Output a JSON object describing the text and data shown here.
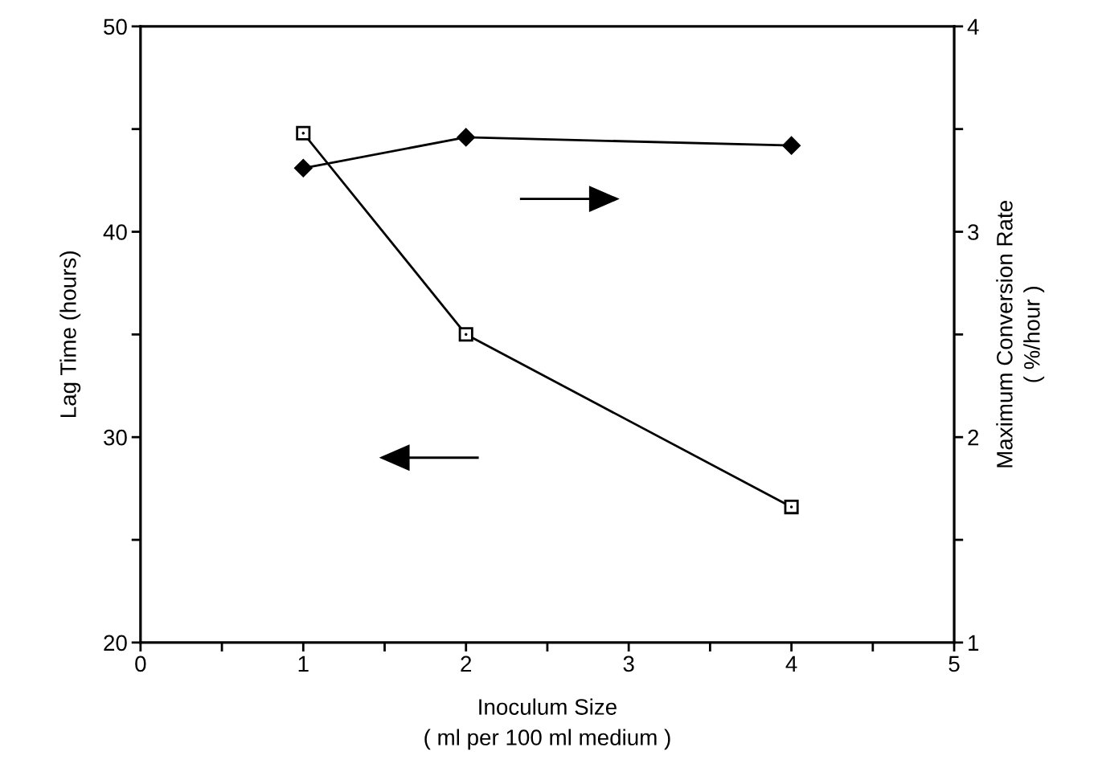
{
  "chart_data": {
    "type": "line",
    "x": [
      1,
      2,
      4
    ],
    "xlabel": "Inoculum Size\n( ml per 100 ml medium )",
    "ylabel": "Lag Time (hours)",
    "y2label": "Maximum Conversion Rate\n( %/hour )",
    "series": [
      {
        "color": "#000000",
        "marker": "square",
        "values": [
          44.8,
          35.0,
          26.6
        ]
      },
      {
        "color": "#000000",
        "marker": "diamond",
        "axis": "y2",
        "values": [
          3.31,
          3.46,
          3.42
        ]
      }
    ],
    "xlim": [
      0,
      5
    ],
    "xticks": [
      0,
      {
        "value": 0.5,
        "label": null
      },
      1,
      {
        "value": 1.5,
        "label": null
      },
      2,
      {
        "value": 2.5,
        "label": null
      },
      3,
      {
        "value": 3.5,
        "label": null
      },
      4,
      {
        "value": 4.5,
        "label": null
      },
      5
    ],
    "ylim": [
      20,
      50
    ],
    "yticks": [
      20,
      {
        "value": 25,
        "label": null
      },
      30,
      {
        "value": 35,
        "label": null
      },
      40,
      {
        "value": 45,
        "label": null
      },
      50
    ],
    "y2lim": [
      1,
      4
    ],
    "y2ticks": [
      1,
      {
        "value": 1.5,
        "label": null
      },
      2,
      {
        "value": 2.5,
        "label": null
      },
      3,
      {
        "value": 3.5,
        "label": null
      },
      4
    ],
    "grid": false,
    "line_style": "solid"
  }
}
